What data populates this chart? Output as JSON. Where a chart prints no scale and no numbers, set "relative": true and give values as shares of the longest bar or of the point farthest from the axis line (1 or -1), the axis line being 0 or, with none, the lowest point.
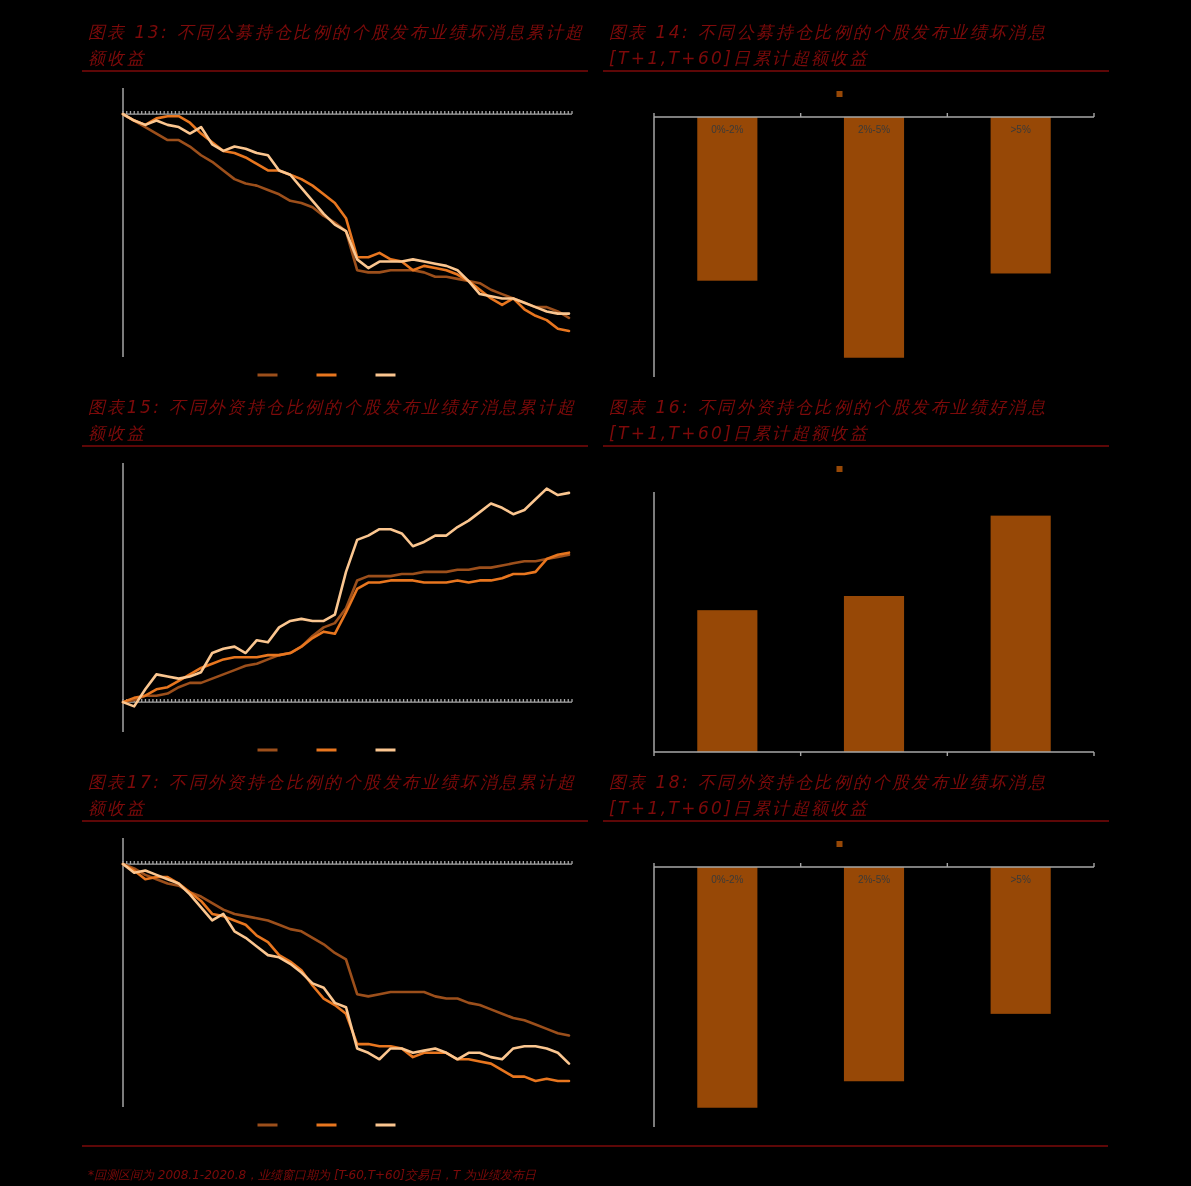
{
  "chart_data": [
    {
      "type": "line",
      "title": "图表 13: 不同公募持仓比例的个股发布业绩坏消息累计超额收益",
      "relative": true,
      "categories": [
        null,
        null,
        null,
        null,
        null,
        null,
        null,
        null,
        null,
        null,
        null,
        null,
        null,
        null,
        null,
        null,
        null,
        null,
        null,
        null,
        null,
        null,
        null,
        null,
        null,
        null,
        null,
        null,
        null,
        null,
        null,
        null,
        null,
        null,
        null,
        null,
        null,
        null,
        null,
        null,
        null
      ],
      "series": [
        {
          "color": "#9c4f1b",
          "values": [
            0,
            -0.03,
            -0.06,
            -0.09,
            -0.12,
            -0.12,
            -0.15,
            -0.19,
            -0.22,
            -0.26,
            -0.3,
            -0.32,
            -0.33,
            -0.35,
            -0.37,
            -0.4,
            -0.41,
            -0.43,
            -0.47,
            -0.5,
            -0.54,
            -0.72,
            -0.73,
            -0.73,
            -0.72,
            -0.72,
            -0.72,
            -0.73,
            -0.75,
            -0.75,
            -0.76,
            -0.77,
            -0.78,
            -0.81,
            -0.83,
            -0.85,
            -0.87,
            -0.89,
            -0.89,
            -0.91,
            -0.94
          ]
        },
        {
          "color": "#e8761f",
          "values": [
            0,
            -0.03,
            -0.05,
            -0.02,
            -0.01,
            -0.01,
            -0.04,
            -0.09,
            -0.13,
            -0.17,
            -0.18,
            -0.2,
            -0.23,
            -0.26,
            -0.26,
            -0.28,
            -0.3,
            -0.33,
            -0.37,
            -0.41,
            -0.48,
            -0.66,
            -0.66,
            -0.64,
            -0.67,
            -0.68,
            -0.72,
            -0.7,
            -0.71,
            -0.72,
            -0.74,
            -0.77,
            -0.81,
            -0.85,
            -0.88,
            -0.85,
            -0.9,
            -0.93,
            -0.95,
            -0.99,
            -1
          ]
        },
        {
          "color": "#fbc690",
          "values": [
            0,
            -0.03,
            -0.05,
            -0.03,
            -0.05,
            -0.06,
            -0.09,
            -0.06,
            -0.14,
            -0.17,
            -0.15,
            -0.16,
            -0.18,
            -0.19,
            -0.26,
            -0.28,
            -0.34,
            -0.4,
            -0.46,
            -0.51,
            -0.54,
            -0.67,
            -0.71,
            -0.68,
            -0.68,
            -0.68,
            -0.67,
            -0.68,
            -0.69,
            -0.7,
            -0.72,
            -0.77,
            -0.83,
            -0.84,
            -0.85,
            -0.85,
            -0.87,
            -0.89,
            -0.91,
            -0.92,
            -0.92
          ]
        }
      ]
    },
    {
      "type": "bar",
      "title": "图表 14: 不同公募持仓比例的个股发布业绩坏消息[T+1,T+60]日累计超额收益",
      "relative": true,
      "categories": [
        "0%-2%",
        "2%-5%",
        ">5%"
      ],
      "values": [
        -0.68,
        -1,
        -0.65
      ],
      "color": "#974806"
    },
    {
      "type": "line",
      "title": "图表15: 不同外资持仓比例的个股发布业绩好消息累计超额收益",
      "relative": true,
      "categories": [
        null,
        null,
        null,
        null,
        null,
        null,
        null,
        null,
        null,
        null,
        null,
        null,
        null,
        null,
        null,
        null,
        null,
        null,
        null,
        null,
        null,
        null,
        null,
        null,
        null,
        null,
        null,
        null,
        null,
        null,
        null,
        null,
        null,
        null,
        null,
        null,
        null,
        null,
        null,
        null,
        null
      ],
      "series": [
        {
          "color": "#9c4f1b",
          "values": [
            0,
            0.01,
            0.03,
            0.03,
            0.04,
            0.07,
            0.09,
            0.09,
            0.11,
            0.13,
            0.15,
            0.17,
            0.18,
            0.2,
            0.22,
            0.23,
            0.26,
            0.31,
            0.35,
            0.37,
            0.44,
            0.57,
            0.59,
            0.59,
            0.59,
            0.6,
            0.6,
            0.61,
            0.61,
            0.61,
            0.62,
            0.62,
            0.63,
            0.63,
            0.64,
            0.65,
            0.66,
            0.66,
            0.67,
            0.68,
            0.69
          ]
        },
        {
          "color": "#e8761f",
          "values": [
            0,
            0.02,
            0.03,
            0.06,
            0.07,
            0.1,
            0.13,
            0.16,
            0.18,
            0.2,
            0.21,
            0.21,
            0.21,
            0.22,
            0.22,
            0.23,
            0.26,
            0.3,
            0.33,
            0.32,
            0.42,
            0.53,
            0.56,
            0.56,
            0.57,
            0.57,
            0.57,
            0.56,
            0.56,
            0.56,
            0.57,
            0.56,
            0.57,
            0.57,
            0.58,
            0.6,
            0.6,
            0.61,
            0.67,
            0.69,
            0.7
          ]
        },
        {
          "color": "#fbc690",
          "values": [
            0,
            -0.02,
            0.06,
            0.13,
            0.12,
            0.11,
            0.12,
            0.14,
            0.23,
            0.25,
            0.26,
            0.23,
            0.29,
            0.28,
            0.35,
            0.38,
            0.39,
            0.38,
            0.38,
            0.41,
            0.61,
            0.76,
            0.78,
            0.81,
            0.81,
            0.79,
            0.73,
            0.75,
            0.78,
            0.78,
            0.82,
            0.85,
            0.89,
            0.93,
            0.91,
            0.88,
            0.9,
            0.95,
            1,
            0.97,
            0.98
          ]
        }
      ]
    },
    {
      "type": "bar",
      "title": "图表 16: 不同外资持仓比例的个股发布业绩好消息[T+1,T+60]日累计超额收益",
      "relative": true,
      "categories": [
        null,
        null,
        null
      ],
      "values": [
        0.6,
        0.66,
        1
      ],
      "color": "#974806"
    },
    {
      "type": "line",
      "title": "图表17: 不同外资持仓比例的个股发布业绩坏消息累计超额收益",
      "relative": true,
      "annotations": [
        "*回测区间为 2008.1-2020.8，业绩窗口期为 [T-60,T+60]交易日，T 为业绩发布日"
      ],
      "categories": [
        null,
        null,
        null,
        null,
        null,
        null,
        null,
        null,
        null,
        null,
        null,
        null,
        null,
        null,
        null,
        null,
        null,
        null,
        null,
        null,
        null,
        null,
        null,
        null,
        null,
        null,
        null,
        null,
        null,
        null,
        null,
        null,
        null,
        null,
        null,
        null,
        null,
        null,
        null,
        null,
        null
      ],
      "series": [
        {
          "color": "#9c4f1b",
          "values": [
            0,
            -0.02,
            -0.05,
            -0.07,
            -0.09,
            -0.1,
            -0.13,
            -0.15,
            -0.18,
            -0.21,
            -0.23,
            -0.24,
            -0.25,
            -0.26,
            -0.28,
            -0.3,
            -0.31,
            -0.34,
            -0.37,
            -0.41,
            -0.44,
            -0.6,
            -0.61,
            -0.6,
            -0.59,
            -0.59,
            -0.59,
            -0.59,
            -0.61,
            -0.62,
            -0.62,
            -0.64,
            -0.65,
            -0.67,
            -0.69,
            -0.71,
            -0.72,
            -0.74,
            -0.76,
            -0.78,
            -0.79
          ]
        },
        {
          "color": "#e8761f",
          "values": [
            0,
            -0.03,
            -0.07,
            -0.06,
            -0.06,
            -0.09,
            -0.13,
            -0.17,
            -0.23,
            -0.24,
            -0.26,
            -0.28,
            -0.33,
            -0.36,
            -0.42,
            -0.45,
            -0.49,
            -0.56,
            -0.62,
            -0.65,
            -0.69,
            -0.83,
            -0.83,
            -0.84,
            -0.84,
            -0.85,
            -0.89,
            -0.87,
            -0.87,
            -0.87,
            -0.9,
            -0.9,
            -0.91,
            -0.92,
            -0.95,
            -0.98,
            -0.98,
            -1,
            -0.99,
            -1,
            -1
          ]
        },
        {
          "color": "#fbc690",
          "values": [
            0,
            -0.04,
            -0.03,
            -0.05,
            -0.07,
            -0.09,
            -0.14,
            -0.2,
            -0.26,
            -0.23,
            -0.31,
            -0.34,
            -0.38,
            -0.42,
            -0.43,
            -0.46,
            -0.5,
            -0.55,
            -0.57,
            -0.64,
            -0.66,
            -0.85,
            -0.87,
            -0.9,
            -0.85,
            -0.85,
            -0.87,
            -0.86,
            -0.85,
            -0.87,
            -0.9,
            -0.87,
            -0.87,
            -0.89,
            -0.9,
            -0.85,
            -0.84,
            -0.84,
            -0.85,
            -0.87,
            -0.92
          ]
        }
      ]
    },
    {
      "type": "bar",
      "title": "图表 18: 不同外资持仓比例的个股发布业绩坏消息[T+1,T+60]日累计超额收益",
      "relative": true,
      "categories": [
        "0%-2%",
        "2%-5%",
        ">5%"
      ],
      "values": [
        -1,
        -0.89,
        -0.61
      ],
      "color": "#974806"
    }
  ]
}
